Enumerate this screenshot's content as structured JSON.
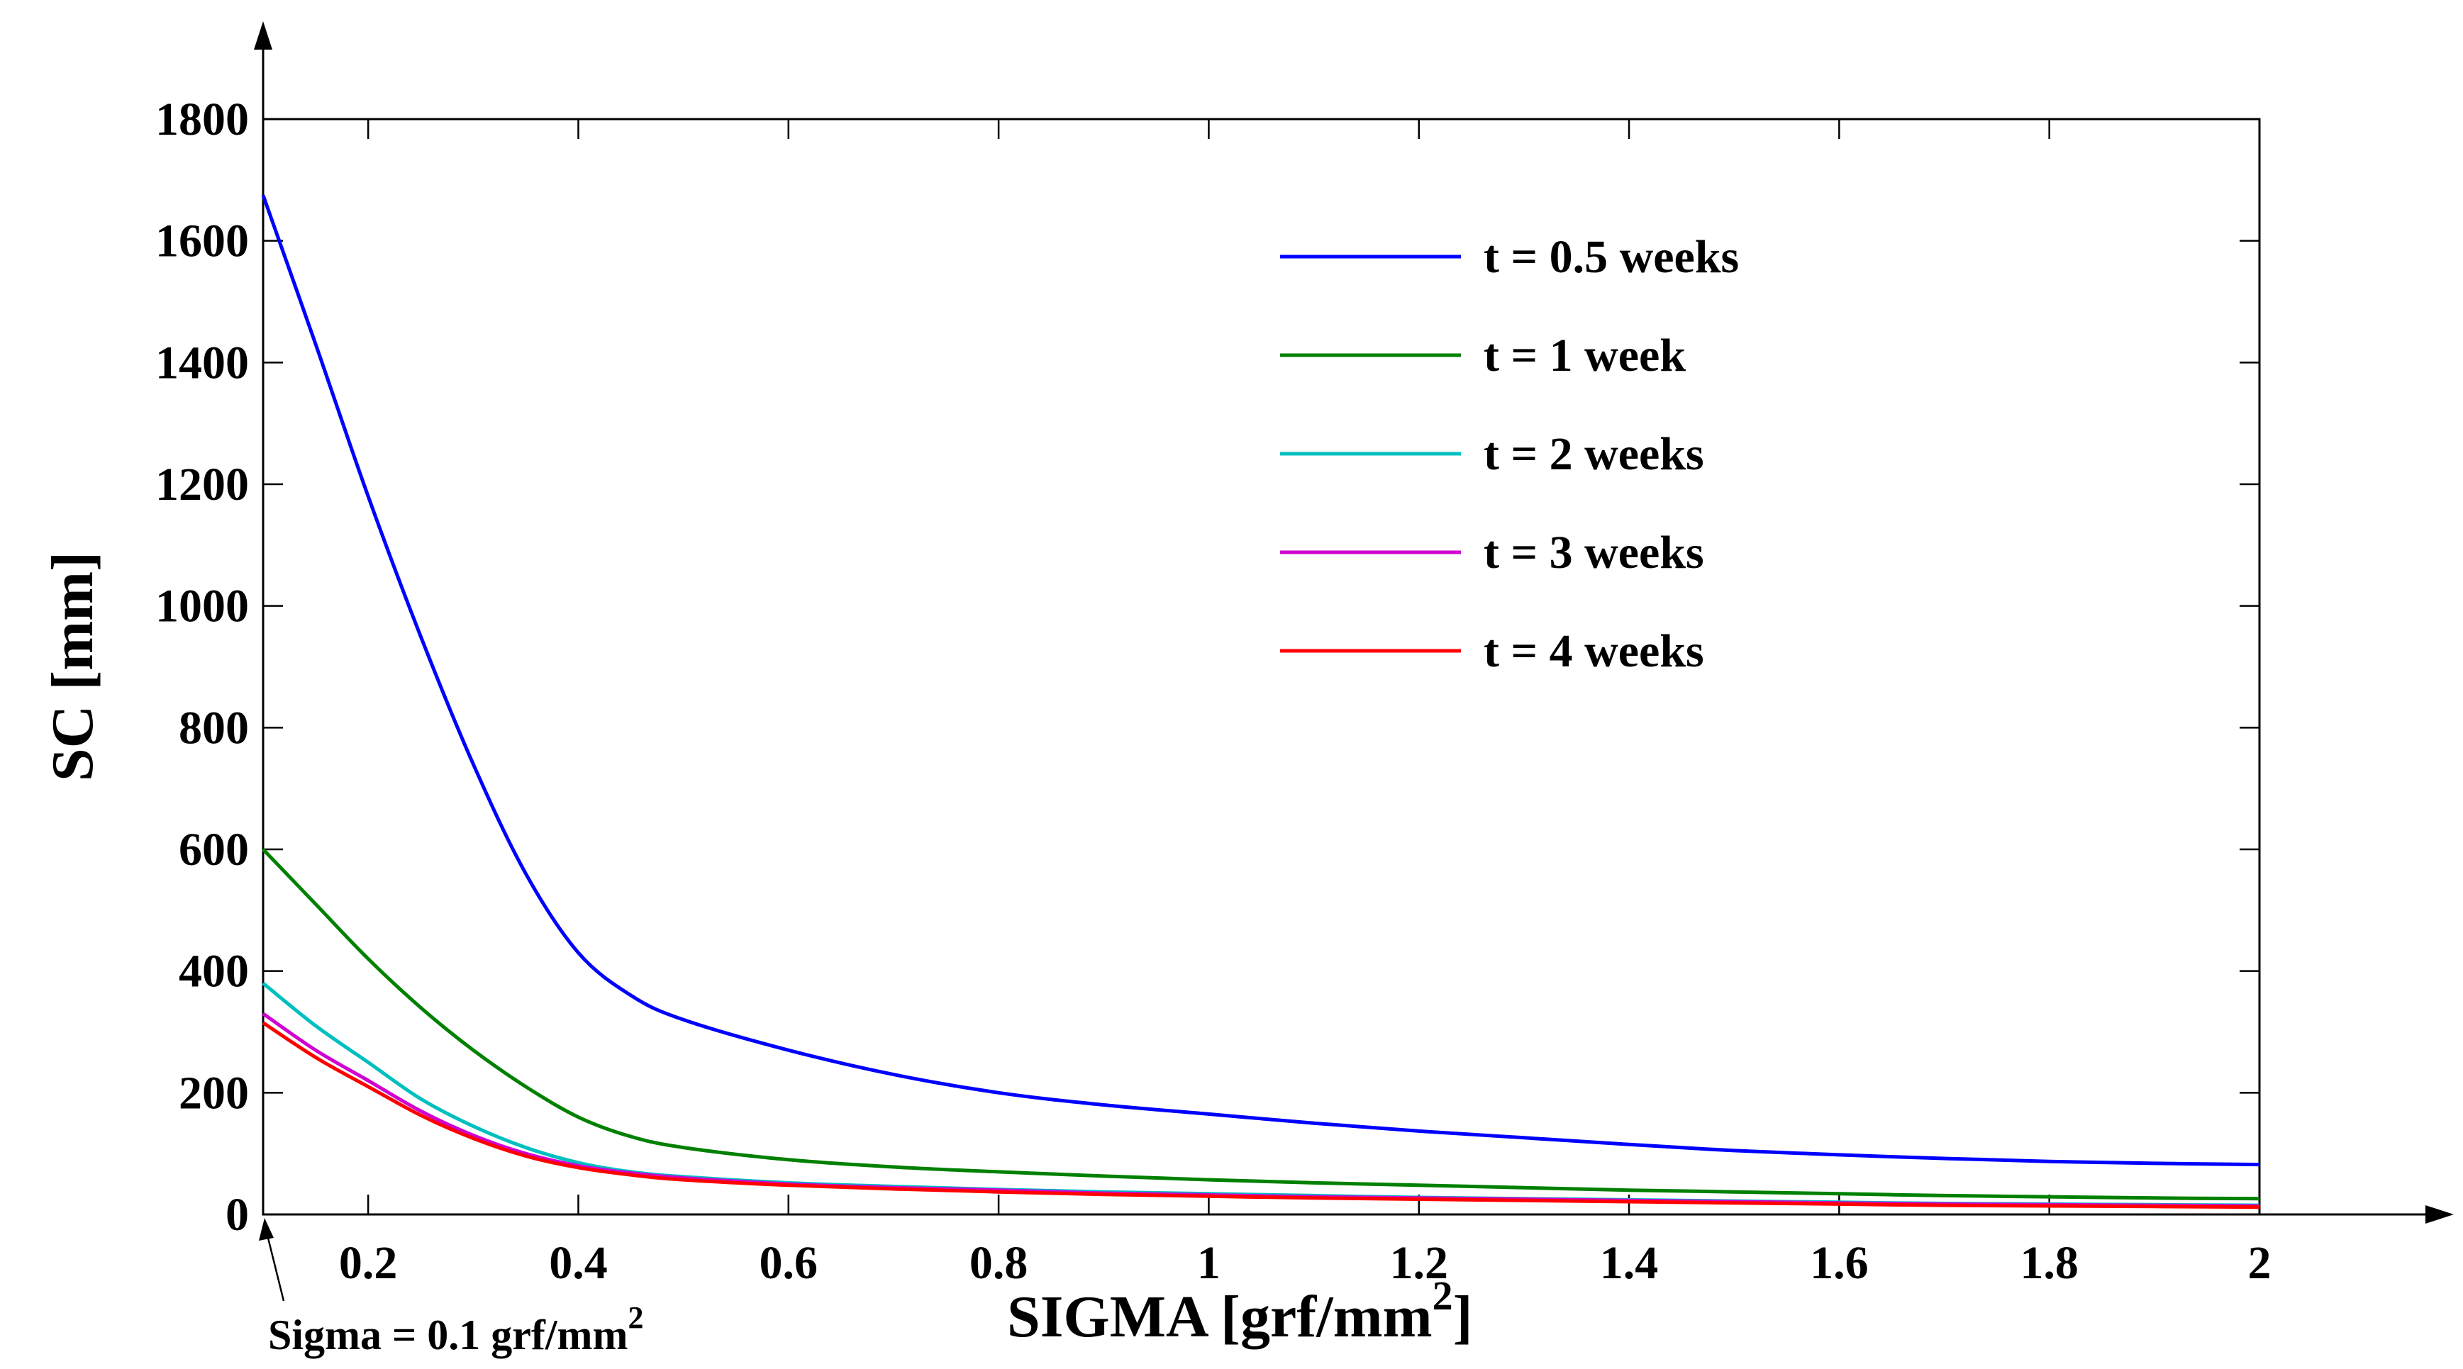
{
  "chart_data": {
    "type": "line",
    "title": "",
    "xlabel": "SIGMA [grf/mm",
    "xlabel_sup": "2",
    "xlabel_suffix": "]",
    "ylabel": "SC [mm]",
    "xlim": [
      0.1,
      2
    ],
    "ylim": [
      0,
      1800
    ],
    "x_ticks": [
      0.2,
      0.4,
      0.6,
      0.8,
      1,
      1.2,
      1.4,
      1.6,
      1.8,
      2
    ],
    "x_tick_labels": [
      "0.2",
      "0.4",
      "0.6",
      "0.8",
      "1",
      "1.2",
      "1.4",
      "1.6",
      "1.8",
      "2"
    ],
    "y_ticks": [
      0,
      200,
      400,
      600,
      800,
      1000,
      1200,
      1400,
      1600,
      1800
    ],
    "y_tick_labels": [
      "0",
      "200",
      "400",
      "600",
      "800",
      "1000",
      "1200",
      "1400",
      "1600",
      "1800"
    ],
    "grid": false,
    "legend_position": "top-right",
    "annotation": {
      "text": "Sigma = 0.1 grf/mm",
      "sup": "2",
      "points_to_x": 0.1,
      "points_to_y": 0
    },
    "x": [
      0.1,
      0.15,
      0.2,
      0.25,
      0.3,
      0.35,
      0.4,
      0.45,
      0.5,
      0.6,
      0.7,
      0.8,
      0.9,
      1.0,
      1.1,
      1.2,
      1.3,
      1.4,
      1.5,
      1.6,
      1.7,
      1.8,
      1.9,
      2.0
    ],
    "series": [
      {
        "name": "t = 0.5 weeks",
        "color": "#0000ff",
        "values": [
          1675,
          1430,
          1180,
          950,
          740,
          560,
          430,
          360,
          320,
          270,
          230,
          200,
          180,
          165,
          150,
          137,
          126,
          115,
          105,
          98,
          92,
          87,
          84,
          82
        ]
      },
      {
        "name": "t = 1 week",
        "color": "#008000",
        "values": [
          600,
          510,
          420,
          340,
          270,
          210,
          160,
          128,
          110,
          90,
          78,
          70,
          63,
          57,
          52,
          48,
          44,
          40,
          37,
          34,
          31,
          29,
          27,
          26
        ]
      },
      {
        "name": "t = 2 weeks",
        "color": "#00bfbf",
        "values": [
          380,
          310,
          250,
          190,
          145,
          110,
          85,
          70,
          62,
          52,
          46,
          41,
          37,
          34,
          31,
          28,
          26,
          24,
          22,
          20,
          18,
          17,
          16,
          15
        ]
      },
      {
        "name": "t = 3 weeks",
        "color": "#d000d0",
        "values": [
          330,
          270,
          220,
          170,
          130,
          100,
          80,
          68,
          60,
          50,
          44,
          40,
          35,
          32,
          29,
          27,
          25,
          23,
          21,
          19,
          17,
          16,
          15,
          14
        ]
      },
      {
        "name": "t = 4 weeks",
        "color": "#ff0000",
        "values": [
          315,
          258,
          210,
          163,
          125,
          96,
          77,
          65,
          57,
          48,
          42,
          37,
          33,
          30,
          27,
          25,
          23,
          21,
          19,
          17,
          15,
          14,
          13,
          12
        ]
      }
    ]
  }
}
